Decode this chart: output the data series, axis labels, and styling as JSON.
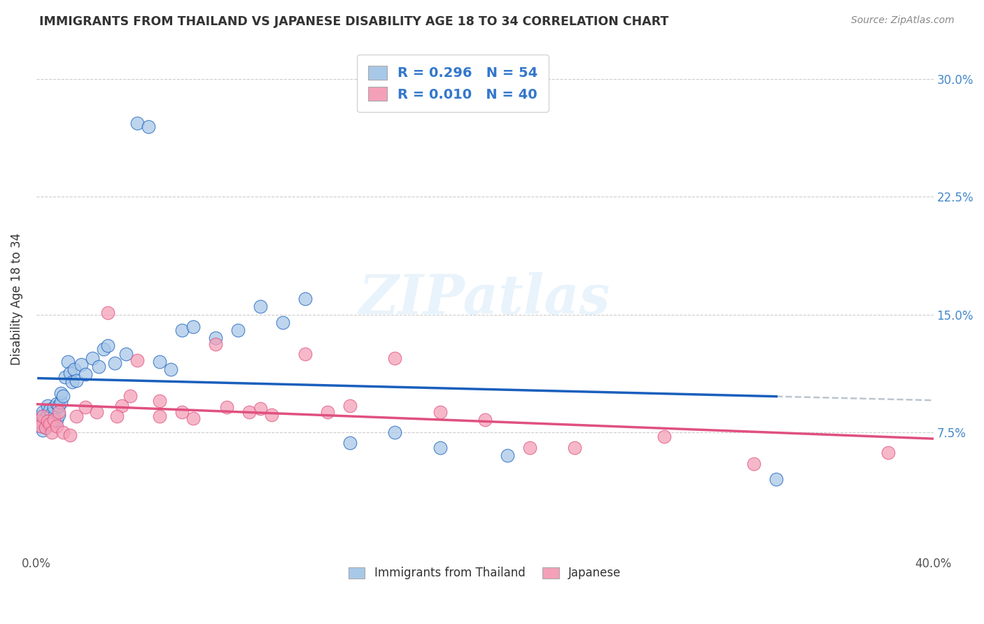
{
  "title": "IMMIGRANTS FROM THAILAND VS JAPANESE DISABILITY AGE 18 TO 34 CORRELATION CHART",
  "source": "Source: ZipAtlas.com",
  "ylabel": "Disability Age 18 to 34",
  "yticks": [
    "7.5%",
    "15.0%",
    "22.5%",
    "30.0%"
  ],
  "yticks_vals": [
    0.075,
    0.15,
    0.225,
    0.3
  ],
  "xlim": [
    0.0,
    0.4
  ],
  "ylim": [
    0.0,
    0.32
  ],
  "legend1_r": "0.296",
  "legend1_n": "54",
  "legend2_r": "0.010",
  "legend2_n": "40",
  "legend1_label": "Immigrants from Thailand",
  "legend2_label": "Japanese",
  "color_thailand": "#a8c8e8",
  "color_japanese": "#f4a0b8",
  "color_line_thailand": "#1a5fbd",
  "color_line_japanese": "#e05080",
  "color_line_dashed": "#b0bcc8",
  "thailand_x": [
    0.001,
    0.002,
    0.002,
    0.003,
    0.003,
    0.003,
    0.004,
    0.004,
    0.005,
    0.005,
    0.005,
    0.006,
    0.006,
    0.007,
    0.007,
    0.008,
    0.008,
    0.009,
    0.009,
    0.01,
    0.01,
    0.011,
    0.011,
    0.012,
    0.013,
    0.014,
    0.015,
    0.016,
    0.017,
    0.018,
    0.02,
    0.022,
    0.025,
    0.028,
    0.03,
    0.032,
    0.035,
    0.04,
    0.045,
    0.05,
    0.055,
    0.06,
    0.065,
    0.07,
    0.08,
    0.09,
    0.1,
    0.11,
    0.12,
    0.14,
    0.16,
    0.18,
    0.21,
    0.33
  ],
  "thailand_y": [
    0.082,
    0.079,
    0.085,
    0.076,
    0.082,
    0.088,
    0.078,
    0.084,
    0.08,
    0.086,
    0.092,
    0.083,
    0.089,
    0.081,
    0.087,
    0.085,
    0.091,
    0.083,
    0.093,
    0.086,
    0.092,
    0.094,
    0.1,
    0.098,
    0.11,
    0.12,
    0.113,
    0.107,
    0.115,
    0.108,
    0.118,
    0.112,
    0.122,
    0.117,
    0.128,
    0.13,
    0.119,
    0.125,
    0.272,
    0.27,
    0.12,
    0.115,
    0.14,
    0.142,
    0.135,
    0.14,
    0.155,
    0.145,
    0.16,
    0.068,
    0.075,
    0.065,
    0.06,
    0.045
  ],
  "japanese_x": [
    0.001,
    0.002,
    0.003,
    0.004,
    0.005,
    0.006,
    0.007,
    0.008,
    0.009,
    0.01,
    0.012,
    0.015,
    0.018,
    0.022,
    0.027,
    0.032,
    0.038,
    0.045,
    0.055,
    0.065,
    0.08,
    0.1,
    0.13,
    0.16,
    0.2,
    0.24,
    0.28,
    0.32,
    0.036,
    0.042,
    0.055,
    0.07,
    0.085,
    0.095,
    0.105,
    0.12,
    0.14,
    0.18,
    0.22,
    0.38
  ],
  "japanese_y": [
    0.082,
    0.079,
    0.085,
    0.078,
    0.082,
    0.08,
    0.075,
    0.083,
    0.079,
    0.088,
    0.075,
    0.073,
    0.085,
    0.091,
    0.088,
    0.151,
    0.092,
    0.121,
    0.095,
    0.088,
    0.131,
    0.09,
    0.088,
    0.122,
    0.083,
    0.065,
    0.072,
    0.055,
    0.085,
    0.098,
    0.085,
    0.084,
    0.091,
    0.088,
    0.086,
    0.125,
    0.092,
    0.088,
    0.065,
    0.062
  ]
}
